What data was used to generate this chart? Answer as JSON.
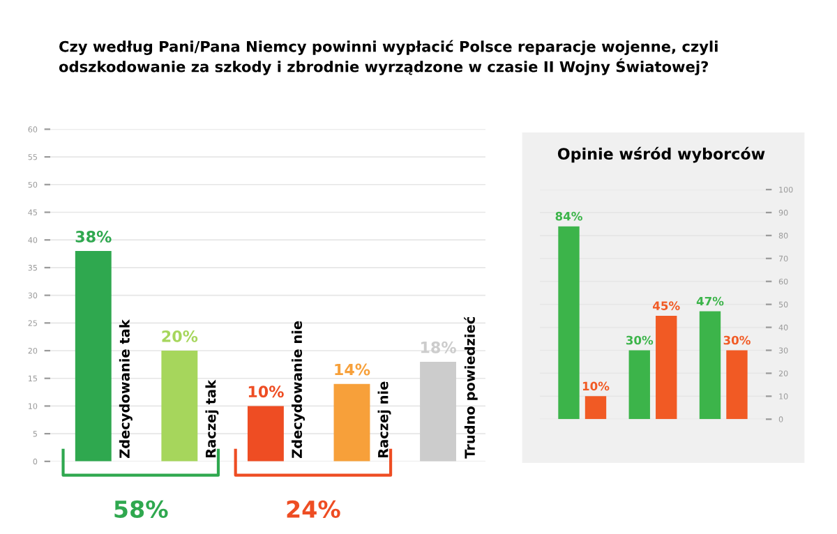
{
  "chart_data": [
    {
      "type": "bar",
      "title": "Czy według Pani/Pana Niemcy powinni wypłacić Polsce reparacje wojenne, czyli odszkodowanie za szkody i zbrodnie wyrządzone w czasie II Wojny Światowej?",
      "categories": [
        "Zdecydowanie tak",
        "Raczej tak",
        "Zdecydowanie nie",
        "Raczej nie",
        "Trudno powiedzieć"
      ],
      "values": [
        38,
        20,
        10,
        14,
        18
      ],
      "colors": [
        "#2fa84f",
        "#a6d65c",
        "#ee4d23",
        "#f7a03a",
        "#cccccc"
      ],
      "value_labels": [
        "38%",
        "20%",
        "10%",
        "14%",
        "18%"
      ],
      "ylim": [
        0,
        60
      ],
      "yticks": [
        0,
        5,
        10,
        15,
        20,
        25,
        30,
        35,
        40,
        45,
        50,
        55,
        60
      ],
      "grid": "y",
      "annotations": [
        "58%",
        "24%"
      ]
    },
    {
      "type": "bar",
      "title": "Opinie wśród wyborców",
      "categories": [
        null,
        null,
        null
      ],
      "series": [
        {
          "color": "#3cb44a",
          "values": [
            84,
            30,
            47
          ],
          "value_labels": [
            "84%",
            "30%",
            "47%"
          ]
        },
        {
          "color": "#f15a24",
          "values": [
            10,
            45,
            30
          ],
          "value_labels": [
            "10%",
            "45%",
            "30%"
          ]
        }
      ],
      "ylim": [
        0,
        100
      ],
      "yticks": [
        0,
        10,
        20,
        30,
        40,
        50,
        60,
        70,
        80,
        90,
        100
      ],
      "grid": "y"
    }
  ]
}
